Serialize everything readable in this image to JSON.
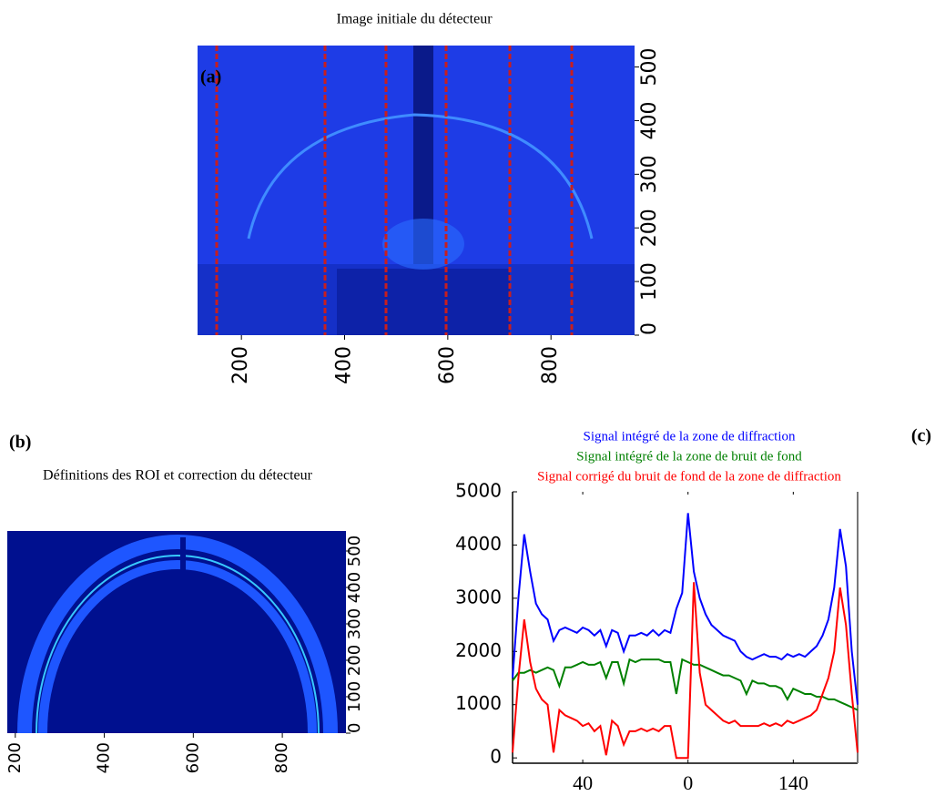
{
  "chart_data": [
    {
      "type": "image",
      "panel_label": "(a)",
      "title": "Image initiale du  détecteur",
      "xlim": [
        115,
        962
      ],
      "xticks": [
        200,
        400,
        600,
        800
      ],
      "ylim": [
        0,
        540
      ],
      "yticks": [
        0,
        100,
        200,
        300,
        400,
        500
      ]
    },
    {
      "type": "image",
      "panel_label": "(b)",
      "title": "Définitions des ROI et correction du détecteur",
      "xlim": [
        182,
        943
      ],
      "xticks": [
        200,
        400,
        600,
        800
      ],
      "ylim": [
        0,
        555
      ],
      "yticks": [
        0,
        100,
        200,
        300,
        400,
        500
      ]
    },
    {
      "type": "line",
      "panel_label": "(c)",
      "x": [
        0,
        1,
        2,
        3,
        4,
        5,
        6,
        7,
        8,
        9,
        10,
        11,
        12,
        13,
        14,
        15,
        16,
        17,
        18,
        19,
        20,
        21,
        22,
        23,
        24,
        25,
        26,
        27,
        28,
        29,
        30,
        31,
        32,
        33,
        34,
        35,
        36,
        37,
        38,
        39,
        40,
        41,
        42,
        43,
        44,
        45,
        46,
        47,
        48,
        49,
        50,
        51,
        52,
        53,
        54,
        55,
        56,
        57,
        58,
        59
      ],
      "xlim": [
        0,
        59
      ],
      "xticks": [
        {
          "value": 12,
          "label": "40"
        },
        {
          "value": 30,
          "label": "0"
        },
        {
          "value": 48,
          "label": "140"
        }
      ],
      "ylim": [
        -100,
        5000
      ],
      "yticks": [
        0,
        1000,
        2000,
        3000,
        4000,
        5000
      ],
      "series": [
        {
          "name": "Signal  intégré de la zone de diffraction",
          "color": "#0000ff",
          "values": [
            1500,
            3000,
            4200,
            3500,
            2900,
            2700,
            2600,
            2200,
            2400,
            2450,
            2400,
            2350,
            2450,
            2400,
            2300,
            2400,
            2100,
            2400,
            2350,
            2000,
            2300,
            2300,
            2350,
            2300,
            2400,
            2300,
            2400,
            2350,
            2800,
            3100,
            4600,
            3500,
            3000,
            2700,
            2500,
            2400,
            2300,
            2250,
            2200,
            2000,
            1900,
            1850,
            1900,
            1950,
            1900,
            1900,
            1850,
            1950,
            1900,
            1950,
            1900,
            2000,
            2100,
            2300,
            2600,
            3200,
            4300,
            3600,
            2000,
            1000
          ]
        },
        {
          "name": "Signal  intégré de la zone de bruit de fond",
          "color": "#008000",
          "values": [
            1450,
            1600,
            1600,
            1650,
            1600,
            1650,
            1700,
            1650,
            1350,
            1700,
            1700,
            1750,
            1800,
            1750,
            1750,
            1800,
            1500,
            1800,
            1800,
            1400,
            1850,
            1800,
            1850,
            1850,
            1850,
            1850,
            1800,
            1800,
            1200,
            1850,
            1800,
            1750,
            1750,
            1700,
            1650,
            1600,
            1550,
            1550,
            1500,
            1450,
            1200,
            1450,
            1400,
            1400,
            1350,
            1350,
            1300,
            1100,
            1300,
            1250,
            1200,
            1200,
            1150,
            1150,
            1100,
            1100,
            1050,
            1000,
            950,
            900
          ]
        },
        {
          "name": "Signal  corrigé du bruit de fond de la zone de diffraction",
          "color": "#ff0000",
          "values": [
            100,
            1500,
            2600,
            1800,
            1300,
            1100,
            1000,
            100,
            900,
            800,
            750,
            700,
            600,
            650,
            500,
            600,
            50,
            700,
            600,
            250,
            500,
            500,
            550,
            500,
            550,
            500,
            600,
            600,
            0,
            0,
            0,
            3300,
            1600,
            1000,
            900,
            800,
            700,
            650,
            700,
            600,
            600,
            600,
            600,
            650,
            600,
            650,
            600,
            700,
            650,
            700,
            750,
            800,
            900,
            1200,
            1500,
            2000,
            3200,
            2500,
            1200,
            100
          ]
        }
      ]
    }
  ]
}
